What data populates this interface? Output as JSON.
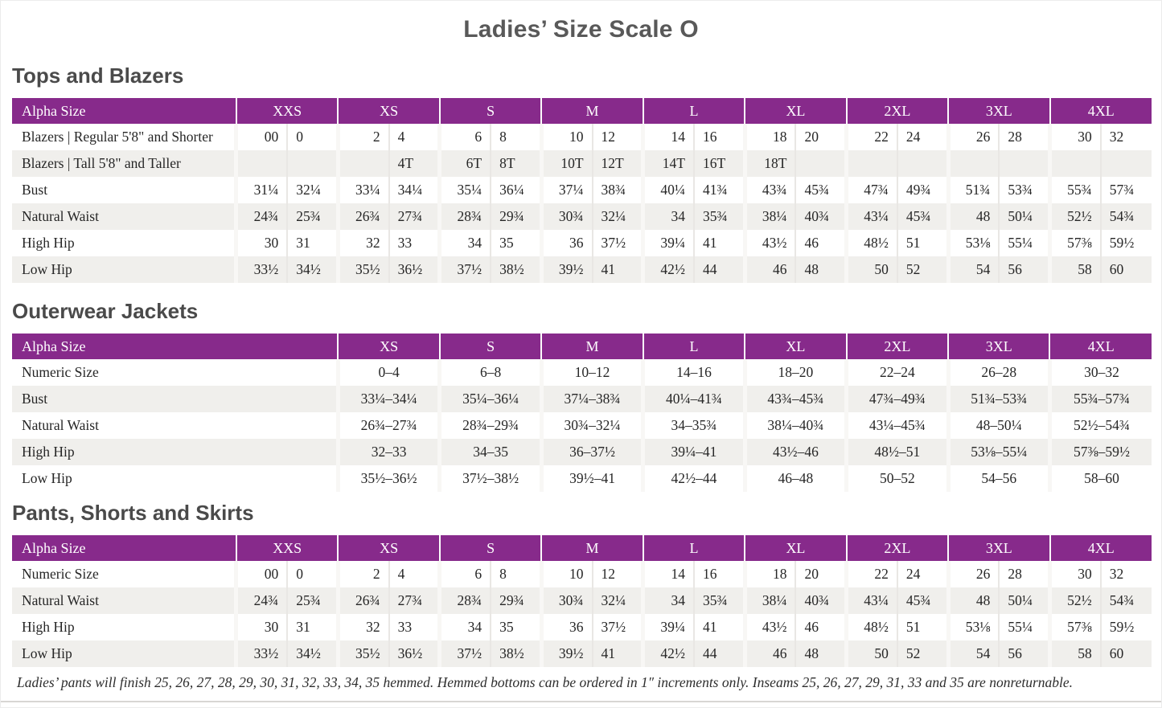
{
  "page": {
    "title": "Ladies’ Size Scale O",
    "footnote": "Ladies’ pants will finish 25, 26, 27, 28, 29, 30, 31, 32, 33, 34, 35 hemmed. Hemmed bottoms can be ordered in 1″ increments only. Inseams 25, 26, 27, 29, 31, 33 and 35 are nonreturnable."
  },
  "colors": {
    "header_purple": "#872a8b",
    "stripe_gray": "#f0efec",
    "heading_gray": "#4a4a4a"
  },
  "tables": [
    {
      "section": "Tops and Blazers",
      "header_label": "Alpha Size",
      "columns": [
        "XXS",
        "XS",
        "S",
        "M",
        "L",
        "XL",
        "2XL",
        "3XL",
        "4XL"
      ],
      "split": true,
      "rows": [
        {
          "label": "Blazers  |  Regular 5'8\" and Shorter",
          "cells": [
            [
              "00",
              "0"
            ],
            [
              "2",
              "4"
            ],
            [
              "6",
              "8"
            ],
            [
              "10",
              "12"
            ],
            [
              "14",
              "16"
            ],
            [
              "18",
              "20"
            ],
            [
              "22",
              "24"
            ],
            [
              "26",
              "28"
            ],
            [
              "30",
              "32"
            ]
          ]
        },
        {
          "label": "Blazers  |  Tall 5'8\" and Taller",
          "cells": [
            [
              "",
              ""
            ],
            [
              "",
              "4T"
            ],
            [
              "6T",
              "8T"
            ],
            [
              "10T",
              "12T"
            ],
            [
              "14T",
              "16T"
            ],
            [
              "18T",
              ""
            ],
            [
              "",
              ""
            ],
            [
              "",
              ""
            ],
            [
              "",
              ""
            ]
          ]
        },
        {
          "label": "Bust",
          "cells": [
            [
              "31¼",
              "32¼"
            ],
            [
              "33¼",
              "34¼"
            ],
            [
              "35¼",
              "36¼"
            ],
            [
              "37¼",
              "38¾"
            ],
            [
              "40¼",
              "41¾"
            ],
            [
              "43¾",
              "45¾"
            ],
            [
              "47¾",
              "49¾"
            ],
            [
              "51¾",
              "53¾"
            ],
            [
              "55¾",
              "57¾"
            ]
          ]
        },
        {
          "label": "Natural Waist",
          "cells": [
            [
              "24¾",
              "25¾"
            ],
            [
              "26¾",
              "27¾"
            ],
            [
              "28¾",
              "29¾"
            ],
            [
              "30¾",
              "32¼"
            ],
            [
              "34",
              "35¾"
            ],
            [
              "38¼",
              "40¾"
            ],
            [
              "43¼",
              "45¾"
            ],
            [
              "48",
              "50¼"
            ],
            [
              "52½",
              "54¾"
            ]
          ]
        },
        {
          "label": "High Hip",
          "cells": [
            [
              "30",
              "31"
            ],
            [
              "32",
              "33"
            ],
            [
              "34",
              "35"
            ],
            [
              "36",
              "37½"
            ],
            [
              "39¼",
              "41"
            ],
            [
              "43½",
              "46"
            ],
            [
              "48½",
              "51"
            ],
            [
              "53⅛",
              "55¼"
            ],
            [
              "57⅜",
              "59½"
            ]
          ]
        },
        {
          "label": "Low Hip",
          "cells": [
            [
              "33½",
              "34½"
            ],
            [
              "35½",
              "36½"
            ],
            [
              "37½",
              "38½"
            ],
            [
              "39½",
              "41"
            ],
            [
              "42½",
              "44"
            ],
            [
              "46",
              "48"
            ],
            [
              "50",
              "52"
            ],
            [
              "54",
              "56"
            ],
            [
              "58",
              "60"
            ]
          ]
        }
      ]
    },
    {
      "section": "Outerwear Jackets",
      "header_label": "Alpha Size",
      "columns": [
        "XS",
        "S",
        "M",
        "L",
        "XL",
        "2XL",
        "3XL",
        "4XL"
      ],
      "split": false,
      "rows": [
        {
          "label": "Numeric Size",
          "cells": [
            "0–4",
            "6–8",
            "10–12",
            "14–16",
            "18–20",
            "22–24",
            "26–28",
            "30–32"
          ]
        },
        {
          "label": "Bust",
          "cells": [
            "33¼–34¼",
            "35¼–36¼",
            "37¼–38¾",
            "40¼–41¾",
            "43¾–45¾",
            "47¾–49¾",
            "51¾–53¾",
            "55¾–57¾"
          ]
        },
        {
          "label": "Natural Waist",
          "cells": [
            "26¾–27¾",
            "28¾–29¾",
            "30¾–32¼",
            "34–35¾",
            "38¼–40¾",
            "43¼–45¾",
            "48–50¼",
            "52½–54¾"
          ]
        },
        {
          "label": "High Hip",
          "cells": [
            "32–33",
            "34–35",
            "36–37½",
            "39¼–41",
            "43½–46",
            "48½–51",
            "53⅛–55¼",
            "57⅜–59½"
          ]
        },
        {
          "label": "Low Hip",
          "cells": [
            "35½–36½",
            "37½–38½",
            "39½–41",
            "42½–44",
            "46–48",
            "50–52",
            "54–56",
            "58–60"
          ]
        }
      ]
    },
    {
      "section": "Pants, Shorts and Skirts",
      "header_label": "Alpha Size",
      "columns": [
        "XXS",
        "XS",
        "S",
        "M",
        "L",
        "XL",
        "2XL",
        "3XL",
        "4XL"
      ],
      "split": true,
      "rows": [
        {
          "label": "Numeric Size",
          "cells": [
            [
              "00",
              "0"
            ],
            [
              "2",
              "4"
            ],
            [
              "6",
              "8"
            ],
            [
              "10",
              "12"
            ],
            [
              "14",
              "16"
            ],
            [
              "18",
              "20"
            ],
            [
              "22",
              "24"
            ],
            [
              "26",
              "28"
            ],
            [
              "30",
              "32"
            ]
          ]
        },
        {
          "label": "Natural Waist",
          "cells": [
            [
              "24¾",
              "25¾"
            ],
            [
              "26¾",
              "27¾"
            ],
            [
              "28¾",
              "29¾"
            ],
            [
              "30¾",
              "32¼"
            ],
            [
              "34",
              "35¾"
            ],
            [
              "38¼",
              "40¾"
            ],
            [
              "43¼",
              "45¾"
            ],
            [
              "48",
              "50¼"
            ],
            [
              "52½",
              "54¾"
            ]
          ]
        },
        {
          "label": "High Hip",
          "cells": [
            [
              "30",
              "31"
            ],
            [
              "32",
              "33"
            ],
            [
              "34",
              "35"
            ],
            [
              "36",
              "37½"
            ],
            [
              "39¼",
              "41"
            ],
            [
              "43½",
              "46"
            ],
            [
              "48½",
              "51"
            ],
            [
              "53⅛",
              "55¼"
            ],
            [
              "57⅜",
              "59½"
            ]
          ]
        },
        {
          "label": "Low Hip",
          "cells": [
            [
              "33½",
              "34½"
            ],
            [
              "35½",
              "36½"
            ],
            [
              "37½",
              "38½"
            ],
            [
              "39½",
              "41"
            ],
            [
              "42½",
              "44"
            ],
            [
              "46",
              "48"
            ],
            [
              "50",
              "52"
            ],
            [
              "54",
              "56"
            ],
            [
              "58",
              "60"
            ]
          ]
        }
      ]
    }
  ]
}
